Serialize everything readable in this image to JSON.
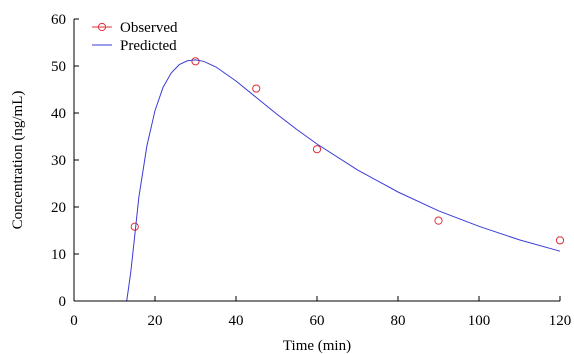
{
  "chart_data": {
    "type": "line",
    "title": "",
    "xlabel": "Time (min)",
    "ylabel": "Concentration (ng/mL)",
    "xlim": [
      0,
      120
    ],
    "ylim": [
      0,
      60
    ],
    "x_ticks": [
      0,
      20,
      40,
      60,
      80,
      100,
      120
    ],
    "y_ticks": [
      0,
      10,
      20,
      30,
      40,
      50,
      60
    ],
    "grid": false,
    "legend": {
      "position": "top-left",
      "entries": [
        "Observed",
        "Predicted"
      ]
    },
    "series": [
      {
        "name": "Observed",
        "kind": "scatter",
        "marker": "open-circle",
        "color": "#e0303a",
        "x": [
          15,
          30,
          45,
          60,
          90,
          120
        ],
        "y": [
          15.8,
          51.0,
          45.2,
          32.3,
          17.1,
          12.9
        ]
      },
      {
        "name": "Predicted",
        "kind": "line",
        "color": "#3b3bd6",
        "x": [
          0,
          13,
          14,
          15,
          16,
          18,
          20,
          22,
          24,
          26,
          28,
          30,
          32,
          35,
          40,
          45,
          50,
          55,
          60,
          70,
          80,
          90,
          100,
          110,
          120
        ],
        "y": [
          0,
          0,
          6,
          14,
          22,
          33,
          40.5,
          45.5,
          48.5,
          50.3,
          51.1,
          51.3,
          51.0,
          49.8,
          46.8,
          43.3,
          39.8,
          36.5,
          33.4,
          27.9,
          23.2,
          19.2,
          15.9,
          13.0,
          10.6
        ]
      }
    ]
  }
}
